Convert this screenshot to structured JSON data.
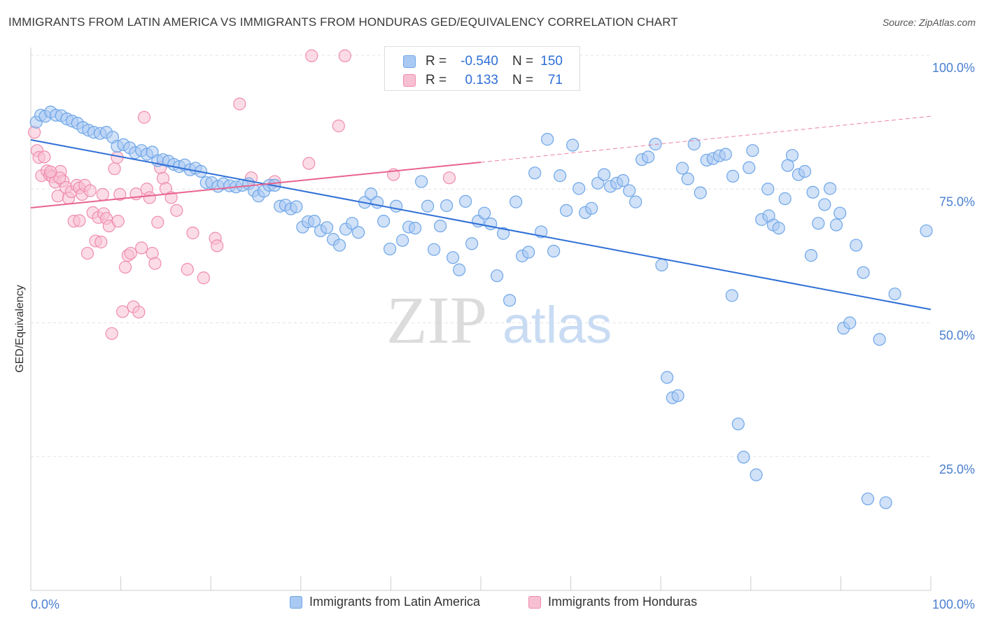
{
  "title": "IMMIGRANTS FROM LATIN AMERICA VS IMMIGRANTS FROM HONDURAS GED/EQUIVALENCY CORRELATION CHART",
  "source": "Source: ZipAtlas.com",
  "watermark": {
    "zip": "ZIP",
    "atlas": "atlas"
  },
  "colors": {
    "blue": "#6ea6e8",
    "blue_fill": "#a9c9f2",
    "blue_line": "#2f6fd6",
    "pink": "#f08cad",
    "pink_fill": "#f7bfd2",
    "pink_line": "#e8648e",
    "axis_text": "#4a7fd0",
    "grid": "#e3e3e3"
  },
  "stats": [
    {
      "r_label": "R =",
      "r_value": "-0.540",
      "n_label": "N =",
      "n_value": "150"
    },
    {
      "r_label": "R =",
      "r_value": "0.133",
      "n_label": "N =",
      "n_value": "71"
    }
  ],
  "chart_data": {
    "type": "scatter",
    "title": "IMMIGRANTS FROM LATIN AMERICA VS IMMIGRANTS FROM HONDURAS GED/EQUIVALENCY CORRELATION CHART",
    "xlabel": "",
    "ylabel": "GED/Equivalency",
    "xlim": [
      0,
      100
    ],
    "ylim": [
      0,
      100
    ],
    "x_tick_labels": [
      "0.0%",
      "100.0%"
    ],
    "y_ticks": [
      25,
      50,
      75,
      100
    ],
    "y_tick_labels": [
      "25.0%",
      "50.0%",
      "75.0%",
      "100.0%"
    ],
    "grid": true,
    "legend": "bottom",
    "series": [
      {
        "name": "Immigrants from Latin America",
        "color": "#6ea6e8",
        "trend": {
          "x": [
            0,
            100
          ],
          "y": [
            84.2,
            52.5
          ]
        },
        "points": [
          [
            0.6,
            87.5
          ],
          [
            1.1,
            88.8
          ],
          [
            1.6,
            88.6
          ],
          [
            2.2,
            89.4
          ],
          [
            2.8,
            88.8
          ],
          [
            3.4,
            88.7
          ],
          [
            4.0,
            88.1
          ],
          [
            4.6,
            87.7
          ],
          [
            5.2,
            87.3
          ],
          [
            5.8,
            86.5
          ],
          [
            6.4,
            86.0
          ],
          [
            7.0,
            85.6
          ],
          [
            7.7,
            85.4
          ],
          [
            8.4,
            85.6
          ],
          [
            9.1,
            84.7
          ],
          [
            9.6,
            83.0
          ],
          [
            10.3,
            83.3
          ],
          [
            11.0,
            82.7
          ],
          [
            11.6,
            81.8
          ],
          [
            12.3,
            82.2
          ],
          [
            12.9,
            81.5
          ],
          [
            13.5,
            81.9
          ],
          [
            14.1,
            80.3
          ],
          [
            14.7,
            80.5
          ],
          [
            15.3,
            80.2
          ],
          [
            15.9,
            79.6
          ],
          [
            16.5,
            79.2
          ],
          [
            17.1,
            79.5
          ],
          [
            17.7,
            78.6
          ],
          [
            18.3,
            78.9
          ],
          [
            18.9,
            78.3
          ],
          [
            19.5,
            76.2
          ],
          [
            20.1,
            76.2
          ],
          [
            20.8,
            75.5
          ],
          [
            21.4,
            76.0
          ],
          [
            22.1,
            75.6
          ],
          [
            22.8,
            75.4
          ],
          [
            23.5,
            75.7
          ],
          [
            24.2,
            76.0
          ],
          [
            24.8,
            74.7
          ],
          [
            25.3,
            73.7
          ],
          [
            25.9,
            74.6
          ],
          [
            26.5,
            75.7
          ],
          [
            27.1,
            75.7
          ],
          [
            27.7,
            71.8
          ],
          [
            28.3,
            72.0
          ],
          [
            28.9,
            71.3
          ],
          [
            29.5,
            71.7
          ],
          [
            30.2,
            67.9
          ],
          [
            30.8,
            68.9
          ],
          [
            31.5,
            69.0
          ],
          [
            32.2,
            67.2
          ],
          [
            32.9,
            67.8
          ],
          [
            33.6,
            65.6
          ],
          [
            34.3,
            64.5
          ],
          [
            35.0,
            67.5
          ],
          [
            35.7,
            68.6
          ],
          [
            36.4,
            66.9
          ],
          [
            37.1,
            72.5
          ],
          [
            37.8,
            74.1
          ],
          [
            38.5,
            72.5
          ],
          [
            39.2,
            69.0
          ],
          [
            39.9,
            63.8
          ],
          [
            40.6,
            71.8
          ],
          [
            41.3,
            65.4
          ],
          [
            42.0,
            67.9
          ],
          [
            42.7,
            67.7
          ],
          [
            43.4,
            76.4
          ],
          [
            44.1,
            71.8
          ],
          [
            44.8,
            63.7
          ],
          [
            45.5,
            68.1
          ],
          [
            46.2,
            71.9
          ],
          [
            46.9,
            62.2
          ],
          [
            47.6,
            59.9
          ],
          [
            48.3,
            72.7
          ],
          [
            49.0,
            64.8
          ],
          [
            49.7,
            69.0
          ],
          [
            50.4,
            70.5
          ],
          [
            51.1,
            68.5
          ],
          [
            51.8,
            58.8
          ],
          [
            52.5,
            66.7
          ],
          [
            53.2,
            54.2
          ],
          [
            53.9,
            72.6
          ],
          [
            54.6,
            62.5
          ],
          [
            55.3,
            63.2
          ],
          [
            56.0,
            78.0
          ],
          [
            56.7,
            67.0
          ],
          [
            57.4,
            84.3
          ],
          [
            58.1,
            63.4
          ],
          [
            58.8,
            77.5
          ],
          [
            59.5,
            71.0
          ],
          [
            60.2,
            83.2
          ],
          [
            60.9,
            75.1
          ],
          [
            61.6,
            70.6
          ],
          [
            62.3,
            71.4
          ],
          [
            63.0,
            76.1
          ],
          [
            63.7,
            77.7
          ],
          [
            64.4,
            75.5
          ],
          [
            65.1,
            76.1
          ],
          [
            65.8,
            76.6
          ],
          [
            66.5,
            74.7
          ],
          [
            67.2,
            72.6
          ],
          [
            67.9,
            80.5
          ],
          [
            68.6,
            81.0
          ],
          [
            69.4,
            83.4
          ],
          [
            70.1,
            60.8
          ],
          [
            70.7,
            39.8
          ],
          [
            71.3,
            36.0
          ],
          [
            71.9,
            36.4
          ],
          [
            72.4,
            78.9
          ],
          [
            73.0,
            76.9
          ],
          [
            73.7,
            83.4
          ],
          [
            74.4,
            74.3
          ],
          [
            75.1,
            80.4
          ],
          [
            75.8,
            80.7
          ],
          [
            76.5,
            81.2
          ],
          [
            77.2,
            81.5
          ],
          [
            77.9,
            55.1
          ],
          [
            78.6,
            31.1
          ],
          [
            79.2,
            24.9
          ],
          [
            79.8,
            79.0
          ],
          [
            80.6,
            21.6
          ],
          [
            81.2,
            69.3
          ],
          [
            81.9,
            75.0
          ],
          [
            82.5,
            68.3
          ],
          [
            83.1,
            67.7
          ],
          [
            83.8,
            73.2
          ],
          [
            84.6,
            81.3
          ],
          [
            85.3,
            77.7
          ],
          [
            86.0,
            78.3
          ],
          [
            86.7,
            62.6
          ],
          [
            87.5,
            68.6
          ],
          [
            88.2,
            72.1
          ],
          [
            88.8,
            75.1
          ],
          [
            89.5,
            68.3
          ],
          [
            90.3,
            49.0
          ],
          [
            91.0,
            50.0
          ],
          [
            91.7,
            64.5
          ],
          [
            93.0,
            17.1
          ],
          [
            95.0,
            16.4
          ],
          [
            99.5,
            67.2
          ],
          [
            96.0,
            55.4
          ],
          [
            94.3,
            46.9
          ],
          [
            92.5,
            59.4
          ],
          [
            89.9,
            70.5
          ],
          [
            86.9,
            74.4
          ],
          [
            84.1,
            79.4
          ],
          [
            82.0,
            70.0
          ],
          [
            80.2,
            82.2
          ],
          [
            78.0,
            77.4
          ]
        ]
      },
      {
        "name": "Immigrants from Honduras",
        "color": "#f08cad",
        "trend": {
          "x": [
            0,
            50
          ],
          "y": [
            71.5,
            80.0
          ]
        },
        "trend_ext": {
          "x": [
            50,
            100
          ],
          "y": [
            80.0,
            88.6
          ]
        },
        "points": [
          [
            0.4,
            85.6
          ],
          [
            0.7,
            82.2
          ],
          [
            0.9,
            80.9
          ],
          [
            1.2,
            77.5
          ],
          [
            1.5,
            81.0
          ],
          [
            1.8,
            78.4
          ],
          [
            2.1,
            77.6
          ],
          [
            2.4,
            77.3
          ],
          [
            2.7,
            76.3
          ],
          [
            3.0,
            73.7
          ],
          [
            3.3,
            78.3
          ],
          [
            3.6,
            76.5
          ],
          [
            3.9,
            75.3
          ],
          [
            4.2,
            73.3
          ],
          [
            4.5,
            74.5
          ],
          [
            4.8,
            69.0
          ],
          [
            5.1,
            75.7
          ],
          [
            5.4,
            75.2
          ],
          [
            5.7,
            74.0
          ],
          [
            6.0,
            75.7
          ],
          [
            6.3,
            63.0
          ],
          [
            6.6,
            74.7
          ],
          [
            6.9,
            70.6
          ],
          [
            7.2,
            65.3
          ],
          [
            7.5,
            69.7
          ],
          [
            7.8,
            65.1
          ],
          [
            8.1,
            70.4
          ],
          [
            8.4,
            69.5
          ],
          [
            8.7,
            68.1
          ],
          [
            9.0,
            48.0
          ],
          [
            9.3,
            78.8
          ],
          [
            9.6,
            80.9
          ],
          [
            9.9,
            74.0
          ],
          [
            10.2,
            52.1
          ],
          [
            10.5,
            60.4
          ],
          [
            10.8,
            62.6
          ],
          [
            11.1,
            63.0
          ],
          [
            11.4,
            53.0
          ],
          [
            11.7,
            74.1
          ],
          [
            12.0,
            52.0
          ],
          [
            12.3,
            64.0
          ],
          [
            12.6,
            88.4
          ],
          [
            12.9,
            75.0
          ],
          [
            13.2,
            73.4
          ],
          [
            13.5,
            63.0
          ],
          [
            13.8,
            61.1
          ],
          [
            14.1,
            68.8
          ],
          [
            14.4,
            79.0
          ],
          [
            14.7,
            77.0
          ],
          [
            15.0,
            75.1
          ],
          [
            15.6,
            73.4
          ],
          [
            16.2,
            71.0
          ],
          [
            17.4,
            60.0
          ],
          [
            18.0,
            66.8
          ],
          [
            19.2,
            58.4
          ],
          [
            20.5,
            65.8
          ],
          [
            20.7,
            64.4
          ],
          [
            23.2,
            90.9
          ],
          [
            24.5,
            77.1
          ],
          [
            27.1,
            76.4
          ],
          [
            30.9,
            79.8
          ],
          [
            31.2,
            99.9
          ],
          [
            34.2,
            86.8
          ],
          [
            34.9,
            99.9
          ],
          [
            40.3,
            77.7
          ],
          [
            46.5,
            77.1
          ],
          [
            3.2,
            77.1
          ],
          [
            2.2,
            78.2
          ],
          [
            5.4,
            69.1
          ],
          [
            8.0,
            74.0
          ],
          [
            9.7,
            69.0
          ]
        ]
      }
    ]
  }
}
